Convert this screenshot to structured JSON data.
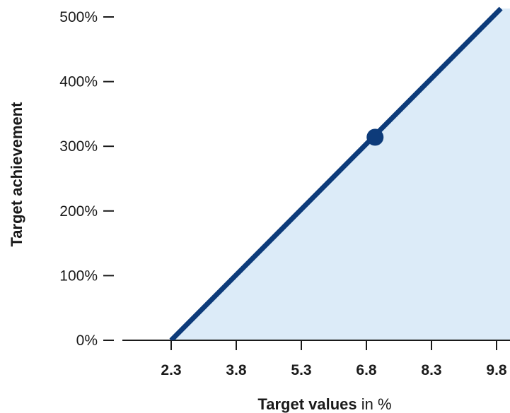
{
  "chart_data": {
    "type": "area",
    "title": "",
    "xlabel_bold": "Target values",
    "xlabel_rest": " in %",
    "ylabel": "Target achievement",
    "x_ticks": [
      "2.3",
      "3.8",
      "5.3",
      "6.8",
      "8.3",
      "9.8"
    ],
    "y_ticks": [
      "0%",
      "100%",
      "200%",
      "300%",
      "400%",
      "500%"
    ],
    "xlim": [
      1.2,
      9.9
    ],
    "ylim": [
      0,
      500
    ],
    "series": [
      {
        "x": [
          2.3,
          9.9
        ],
        "y": [
          0,
          513
        ]
      }
    ],
    "marker": {
      "x": 7.0,
      "y": 314
    },
    "grid": false,
    "colors": {
      "line": "#0d3b7a",
      "fill": "#dcebf8",
      "axis": "#1a1a1a"
    }
  }
}
